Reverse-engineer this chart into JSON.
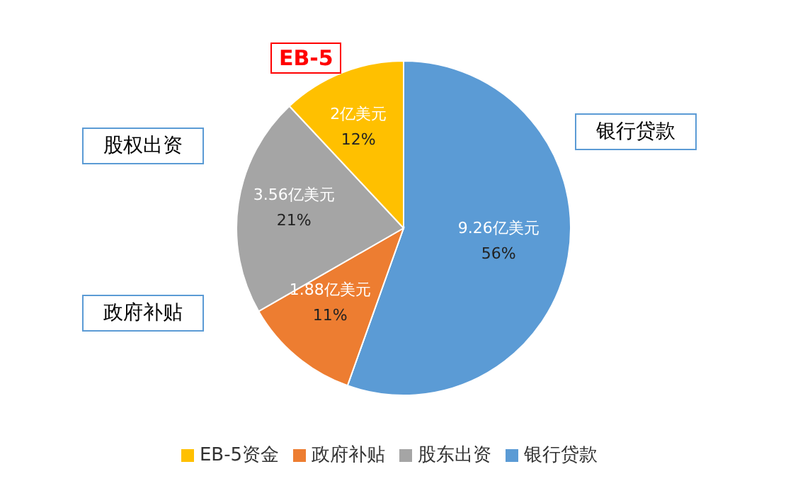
{
  "chart_data": {
    "type": "pie",
    "categories": [
      "银行贷款",
      "政府补贴",
      "股东出资",
      "EB-5资金"
    ],
    "values": [
      9.26,
      1.88,
      3.56,
      2
    ],
    "value_labels": [
      "9.26亿美元\n56%",
      "1.88亿美元\n11%",
      "3.56亿美元\n21%",
      "2亿美元\n12%"
    ],
    "colors": [
      "#5b9bd5",
      "#ed7d31",
      "#a5a5a5",
      "#ffc000"
    ],
    "annotations": [
      "银行贷款",
      "政府补贴",
      "股权出资",
      "EB-5"
    ],
    "legend": "bottom"
  }
}
